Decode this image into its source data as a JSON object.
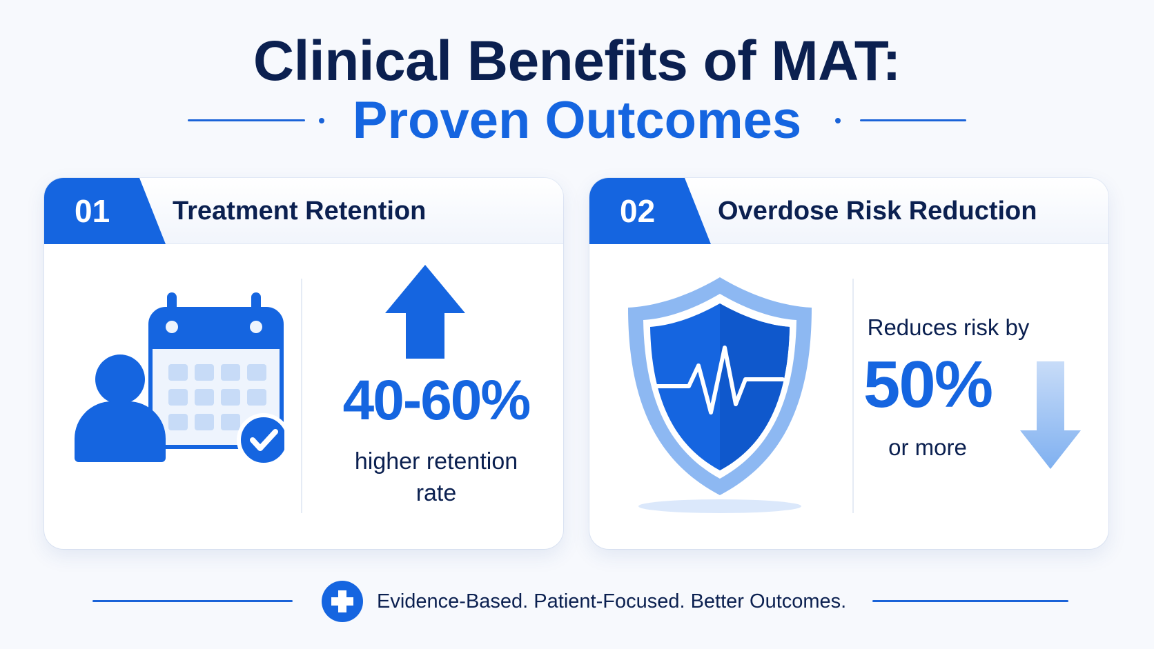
{
  "title": {
    "line1": "Clinical Benefits of MAT:",
    "line2": "Proven Outcomes"
  },
  "cards": [
    {
      "number": "01",
      "title": "Treatment Retention",
      "icon": "calendar-person-check-icon",
      "trend_icon": "arrow-up-icon",
      "stat": "40-60%",
      "caption_line1": "higher retention",
      "caption_line2": "rate"
    },
    {
      "number": "02",
      "title": "Overdose Risk Reduction",
      "icon": "shield-heartbeat-icon",
      "trend_icon": "arrow-down-icon",
      "lead": "Reduces risk by",
      "stat": "50%",
      "tail": "or more"
    }
  ],
  "footer": {
    "icon": "medical-cross-icon",
    "tagline": "Evidence-Based. Patient-Focused. Better Outcomes."
  },
  "colors": {
    "navy": "#0b2050",
    "primary_blue": "#1565e0",
    "light_blue": "#8db8f2",
    "background": "#f7f9fd"
  }
}
